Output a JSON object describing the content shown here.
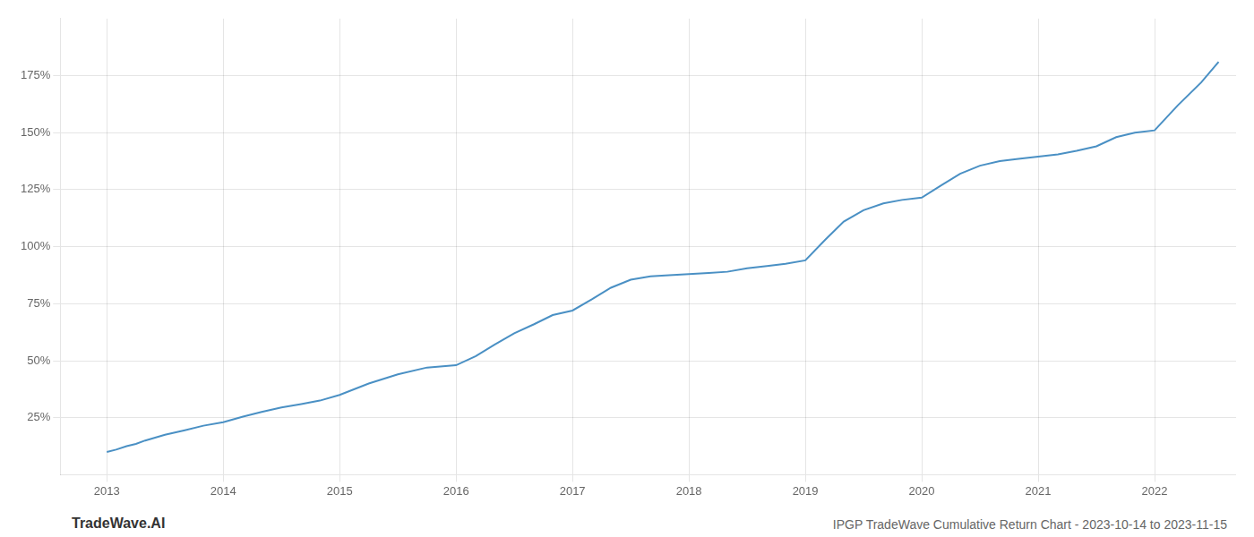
{
  "chart_data": {
    "type": "line",
    "title": "IPGP TradeWave Cumulative Return Chart - 2023-10-14 to 2023-11-15",
    "annotations": [
      {
        "text": "TradeWave.AI"
      }
    ],
    "color": "#4a90c4",
    "x": [
      2013.0,
      2013.08,
      2013.17,
      2013.25,
      2013.33,
      2013.5,
      2013.67,
      2013.83,
      2014.0,
      2014.17,
      2014.33,
      2014.5,
      2014.67,
      2014.83,
      2015.0,
      2015.25,
      2015.5,
      2015.75,
      2016.0,
      2016.17,
      2016.33,
      2016.5,
      2016.67,
      2016.83,
      2017.0,
      2017.17,
      2017.33,
      2017.5,
      2017.67,
      2017.83,
      2018.0,
      2018.17,
      2018.33,
      2018.5,
      2018.67,
      2018.83,
      2019.0,
      2019.17,
      2019.33,
      2019.5,
      2019.67,
      2019.83,
      2020.0,
      2020.17,
      2020.33,
      2020.5,
      2020.67,
      2020.83,
      2021.0,
      2021.17,
      2021.33,
      2021.5,
      2021.67,
      2021.83,
      2022.0,
      2022.2,
      2022.4,
      2022.55
    ],
    "values": [
      10.0,
      11.0,
      12.5,
      13.5,
      15.0,
      17.5,
      19.5,
      21.5,
      23.0,
      25.5,
      27.5,
      29.5,
      31.0,
      32.5,
      35.0,
      40.0,
      44.0,
      47.0,
      48.0,
      52.0,
      57.0,
      62.0,
      66.0,
      70.0,
      72.0,
      77.0,
      82.0,
      85.5,
      87.0,
      87.5,
      88.0,
      88.5,
      89.0,
      90.5,
      91.5,
      92.5,
      94.0,
      103.0,
      111.0,
      116.0,
      119.0,
      120.5,
      121.5,
      127.0,
      132.0,
      135.5,
      137.5,
      138.5,
      139.5,
      140.5,
      142.0,
      144.0,
      148.0,
      150.0,
      151.0,
      162.0,
      172.0,
      181.0
    ],
    "xlim": [
      2012.6,
      2022.7
    ],
    "xticks": [
      2013,
      2014,
      2015,
      2016,
      2017,
      2018,
      2019,
      2020,
      2021,
      2022
    ],
    "ylim": [
      0,
      200
    ],
    "yticks": [
      {
        "value": 25,
        "label": "25%"
      },
      {
        "value": 50,
        "label": "50%"
      },
      {
        "value": 75,
        "label": "75%"
      },
      {
        "value": 100,
        "label": "100%"
      },
      {
        "value": 125,
        "label": "125%"
      },
      {
        "value": 150,
        "label": "150%"
      },
      {
        "value": 175,
        "label": "175%"
      }
    ],
    "grid": true
  }
}
